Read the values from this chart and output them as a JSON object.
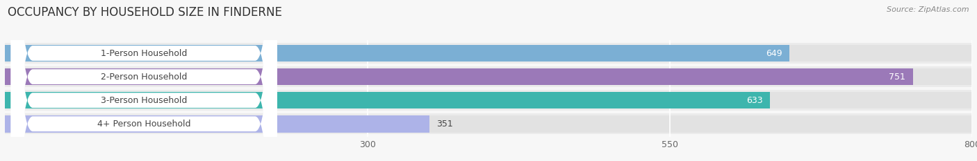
{
  "title": "OCCUPANCY BY HOUSEHOLD SIZE IN FINDERNE",
  "source": "Source: ZipAtlas.com",
  "categories": [
    "1-Person Household",
    "2-Person Household",
    "3-Person Household",
    "4+ Person Household"
  ],
  "values": [
    649,
    751,
    633,
    351
  ],
  "bar_colors": [
    "#7bafd4",
    "#9b79b8",
    "#3db5ad",
    "#adb3e8"
  ],
  "bar_bg_color": "#e2e2e2",
  "row_bg_color": "#ebebeb",
  "value_max": 800,
  "xticks": [
    300,
    550,
    800
  ],
  "background_color": "#f7f7f7",
  "title_fontsize": 12,
  "source_fontsize": 8,
  "bar_label_fontsize": 9,
  "tick_fontsize": 9,
  "cat_fontsize": 9,
  "label_threshold": 450
}
